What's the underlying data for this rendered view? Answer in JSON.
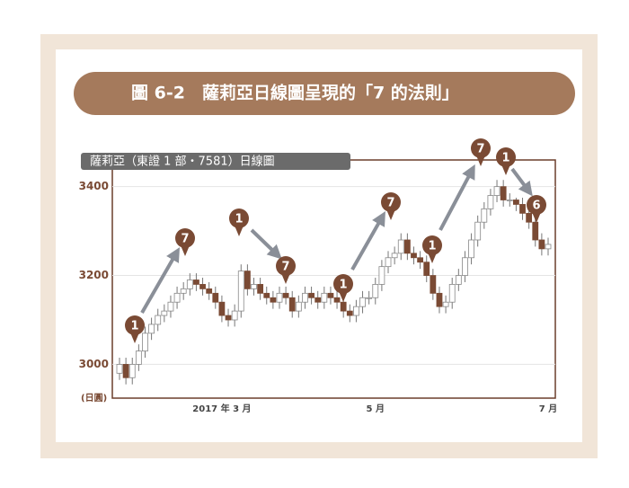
{
  "chart_data": {
    "type": "candlestick",
    "title": "圖 6-2　薩莉亞日線圖呈現的「7 的法則」",
    "subtitle": "薩莉亞（東證 1 部・7581）日線圖",
    "ylabel": "(日圓)",
    "categories": [
      null,
      null,
      null,
      null,
      null,
      null,
      null,
      null,
      null,
      null,
      null,
      null,
      null,
      null,
      null,
      null,
      "2017 年 3 月",
      null,
      null,
      null,
      null,
      null,
      null,
      null,
      null,
      null,
      null,
      null,
      null,
      null,
      null,
      null,
      null,
      null,
      null,
      null,
      null,
      null,
      null,
      null,
      "5 月",
      null,
      null,
      null,
      null,
      null,
      null,
      null,
      null,
      null,
      null,
      null,
      null,
      null,
      null,
      null,
      null,
      null,
      null,
      null,
      null,
      null,
      null,
      null,
      null,
      null,
      null,
      "7 月"
    ],
    "open": [
      2980,
      3000,
      2970,
      3000,
      3030,
      3070,
      3090,
      3110,
      3120,
      3140,
      3160,
      3170,
      3190,
      3180,
      3170,
      3160,
      3140,
      3110,
      3100,
      3120,
      3210,
      3170,
      3180,
      3160,
      3150,
      3140,
      3160,
      3150,
      3120,
      3140,
      3160,
      3150,
      3140,
      3160,
      3150,
      3140,
      3120,
      3110,
      3130,
      3150,
      3150,
      3180,
      3220,
      3240,
      3250,
      3280,
      3250,
      3240,
      3230,
      3200,
      3160,
      3130,
      3140,
      3180,
      3200,
      3240,
      3280,
      3320,
      3350,
      3380,
      3400,
      3370,
      3370,
      3360,
      3340,
      3320,
      3280,
      3260
    ],
    "high": [
      3015,
      3015,
      3015,
      3045,
      3085,
      3105,
      3125,
      3135,
      3155,
      3175,
      3185,
      3205,
      3205,
      3195,
      3185,
      3175,
      3155,
      3125,
      3135,
      3225,
      3225,
      3195,
      3195,
      3175,
      3165,
      3175,
      3175,
      3165,
      3155,
      3175,
      3175,
      3165,
      3175,
      3175,
      3165,
      3155,
      3135,
      3145,
      3165,
      3165,
      3195,
      3235,
      3255,
      3265,
      3295,
      3295,
      3265,
      3255,
      3245,
      3215,
      3175,
      3155,
      3195,
      3215,
      3255,
      3295,
      3335,
      3365,
      3395,
      3415,
      3415,
      3385,
      3375,
      3375,
      3355,
      3335,
      3295,
      3285
    ],
    "low": [
      2965,
      2955,
      2955,
      2985,
      3015,
      3055,
      3075,
      3095,
      3105,
      3125,
      3145,
      3155,
      3165,
      3155,
      3145,
      3125,
      3095,
      3085,
      3085,
      3105,
      3155,
      3155,
      3145,
      3135,
      3125,
      3125,
      3135,
      3105,
      3105,
      3125,
      3135,
      3125,
      3125,
      3135,
      3125,
      3105,
      3095,
      3095,
      3115,
      3135,
      3135,
      3165,
      3205,
      3225,
      3235,
      3235,
      3225,
      3215,
      3185,
      3145,
      3115,
      3115,
      3125,
      3165,
      3185,
      3225,
      3265,
      3305,
      3335,
      3365,
      3355,
      3355,
      3345,
      3325,
      3305,
      3265,
      3245,
      3245
    ],
    "close": [
      3000,
      2970,
      3000,
      3030,
      3070,
      3090,
      3110,
      3120,
      3140,
      3160,
      3170,
      3190,
      3180,
      3170,
      3160,
      3140,
      3110,
      3100,
      3120,
      3210,
      3170,
      3180,
      3160,
      3150,
      3140,
      3160,
      3150,
      3120,
      3140,
      3160,
      3150,
      3140,
      3160,
      3150,
      3140,
      3120,
      3110,
      3130,
      3150,
      3150,
      3180,
      3220,
      3240,
      3250,
      3280,
      3250,
      3240,
      3230,
      3200,
      3160,
      3130,
      3140,
      3180,
      3200,
      3240,
      3280,
      3320,
      3350,
      3380,
      3400,
      3370,
      3370,
      3360,
      3340,
      3320,
      3280,
      3260,
      3270
    ],
    "up_color": "#ffffff",
    "down_color": "#7a4a34",
    "ylim": [
      2924,
      3460
    ],
    "yticks": [
      3000,
      3200,
      3400
    ],
    "grid": true,
    "annotations": [
      "1",
      "7",
      "1",
      "7",
      "1",
      "7",
      "1",
      "7",
      "1",
      "6"
    ]
  }
}
